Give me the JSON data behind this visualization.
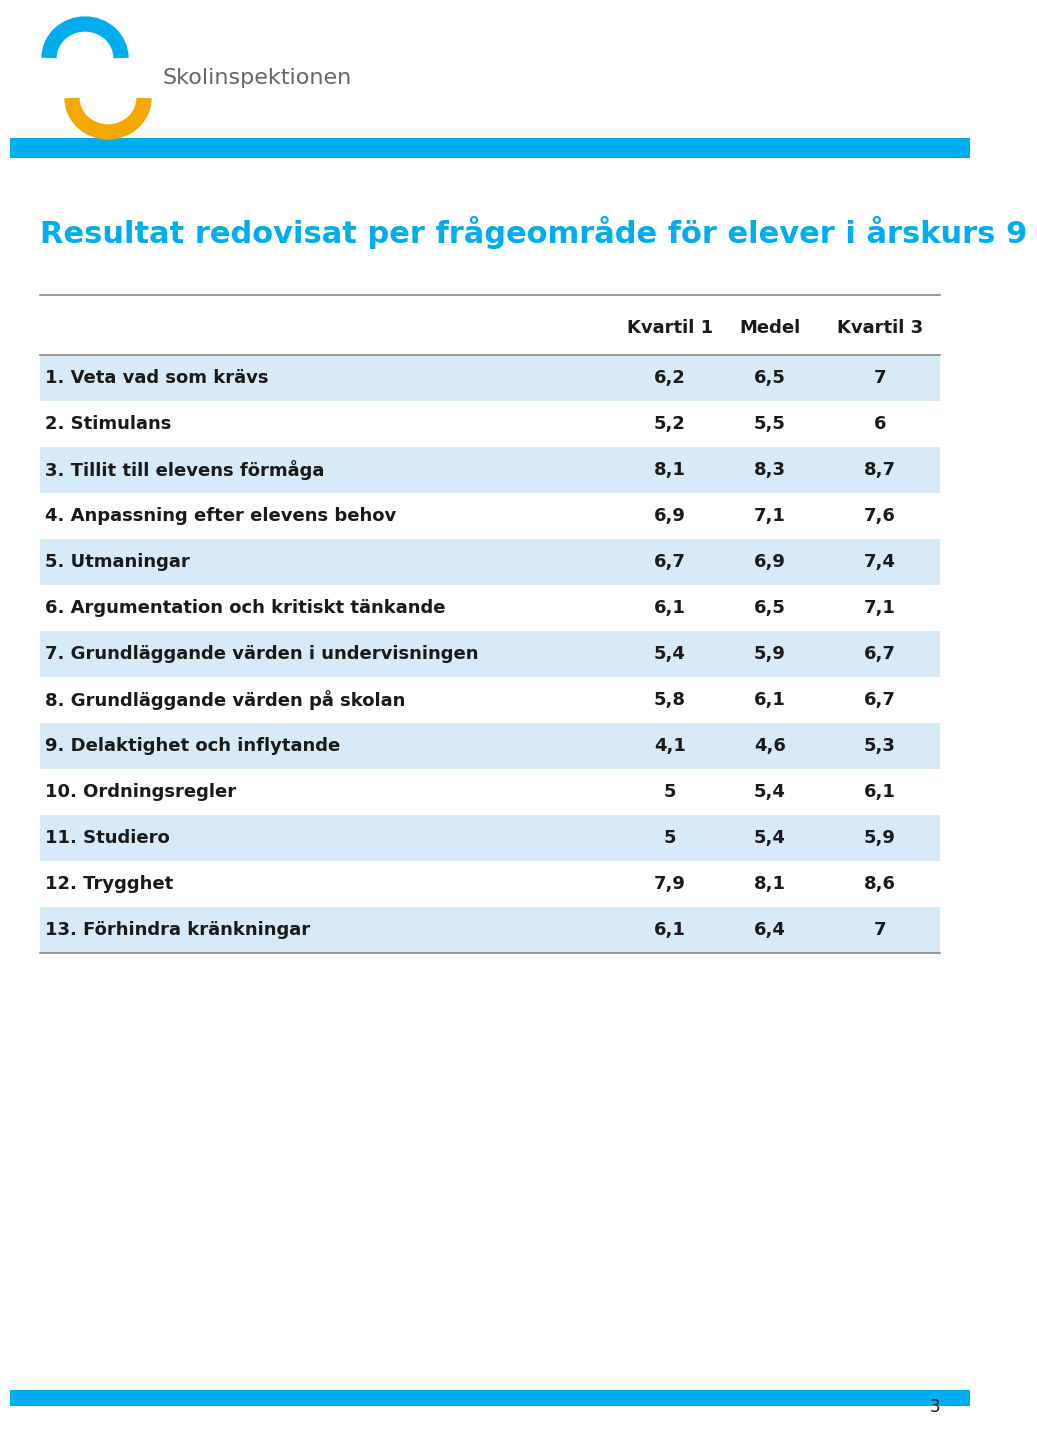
{
  "title": "Resultat redovisat per frågeområde för elever i årskurs 9",
  "title_color": "#00AEEF",
  "header_bar_color": "#00AEEF",
  "footer_bar_color": "#00AEEF",
  "col_headers": [
    "Kvartil 1",
    "Medel",
    "Kvartil 3"
  ],
  "rows": [
    {
      "label": "1. Veta vad som krävs",
      "values": [
        "6,2",
        "6,5",
        "7"
      ],
      "shaded": true
    },
    {
      "label": "2. Stimulans",
      "values": [
        "5,2",
        "5,5",
        "6"
      ],
      "shaded": false
    },
    {
      "label": "3. Tillit till elevens förmåga",
      "values": [
        "8,1",
        "8,3",
        "8,7"
      ],
      "shaded": true
    },
    {
      "label": "4. Anpassning efter elevens behov",
      "values": [
        "6,9",
        "7,1",
        "7,6"
      ],
      "shaded": false
    },
    {
      "label": "5. Utmaningar",
      "values": [
        "6,7",
        "6,9",
        "7,4"
      ],
      "shaded": true
    },
    {
      "label": "6. Argumentation och kritiskt tänkande",
      "values": [
        "6,1",
        "6,5",
        "7,1"
      ],
      "shaded": false
    },
    {
      "label": "7. Grundläggande värden i undervisningen",
      "values": [
        "5,4",
        "5,9",
        "6,7"
      ],
      "shaded": true
    },
    {
      "label": "8. Grundläggande värden på skolan",
      "values": [
        "5,8",
        "6,1",
        "6,7"
      ],
      "shaded": false
    },
    {
      "label": "9. Delaktighet och inflytande",
      "values": [
        "4,1",
        "4,6",
        "5,3"
      ],
      "shaded": true
    },
    {
      "label": "10. Ordningsregler",
      "values": [
        "5",
        "5,4",
        "6,1"
      ],
      "shaded": false
    },
    {
      "label": "11. Studiero",
      "values": [
        "5",
        "5,4",
        "5,9"
      ],
      "shaded": true
    },
    {
      "label": "12. Trygghet",
      "values": [
        "7,9",
        "8,1",
        "8,6"
      ],
      "shaded": false
    },
    {
      "label": "13. Förhindra kränkningar",
      "values": [
        "6,1",
        "6,4",
        "7"
      ],
      "shaded": true
    }
  ],
  "shaded_color": "#D6EAF8",
  "logo_text": "Skolinspektionen",
  "page_number": "3",
  "background_color": "#FFFFFF",
  "table_text_color": "#1a1a1a",
  "label_font_size": 13,
  "value_font_size": 13,
  "header_font_size": 13,
  "cyan_color": "#00AEEF",
  "yellow_color": "#F5A800",
  "logo_gray": "#666666",
  "line_color": "#888888"
}
